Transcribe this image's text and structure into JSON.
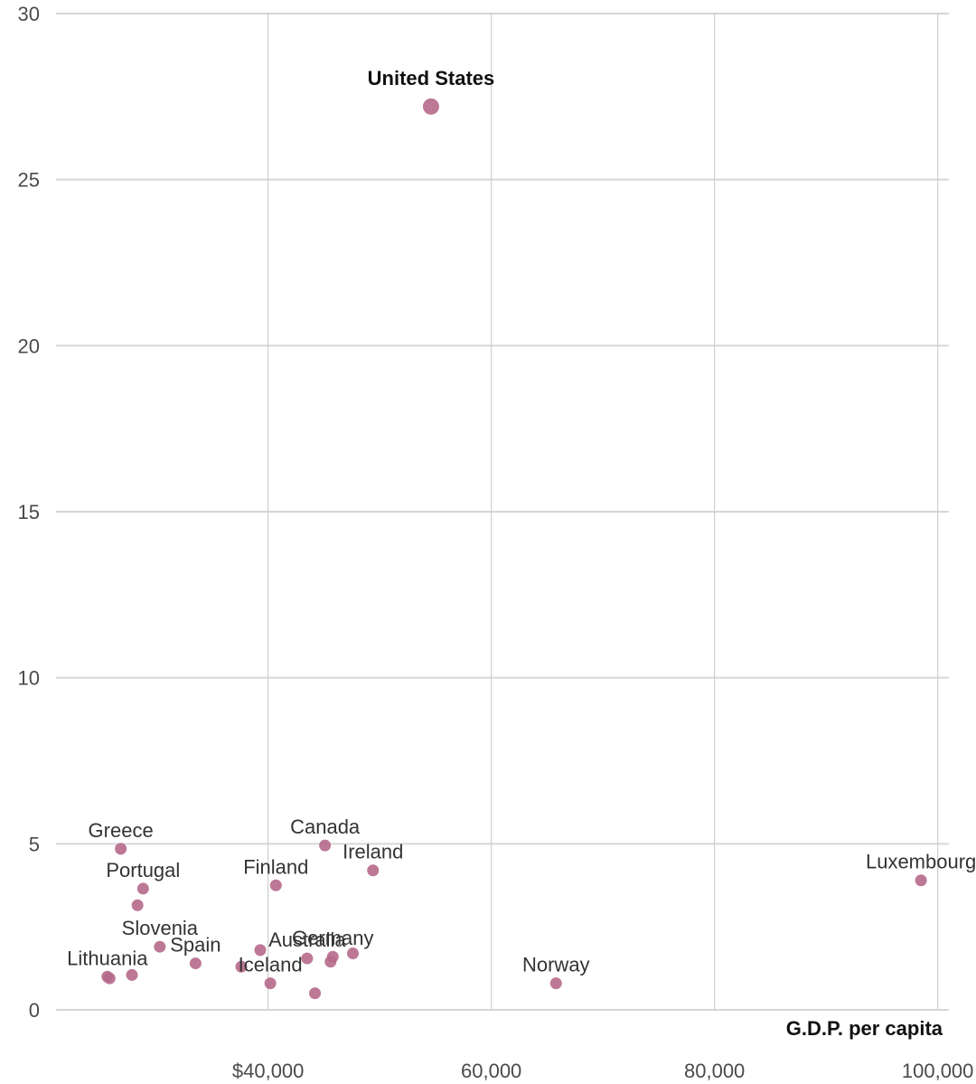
{
  "chart_data": {
    "type": "scatter",
    "xlabel": "G.D.P. per capita",
    "ylabel": "",
    "xlim": [
      21000,
      101000
    ],
    "ylim": [
      0,
      30
    ],
    "x_ticks": [
      {
        "value": 40000,
        "label": "$40,000"
      },
      {
        "value": 60000,
        "label": "60,000"
      },
      {
        "value": 80000,
        "label": "80,000"
      },
      {
        "value": 100000,
        "label": "100,000"
      }
    ],
    "y_ticks": [
      {
        "value": 0,
        "label": "0"
      },
      {
        "value": 5,
        "label": "5"
      },
      {
        "value": 10,
        "label": "10"
      },
      {
        "value": 15,
        "label": "15"
      },
      {
        "value": 20,
        "label": "20"
      },
      {
        "value": 25,
        "label": "25"
      },
      {
        "value": 30,
        "label": "30"
      }
    ],
    "grid": true,
    "point_color": "#b5698a",
    "points": [
      {
        "label": "United States",
        "x": 54600,
        "y": 27.2,
        "highlight": true
      },
      {
        "label": "Luxembourg",
        "x": 98500,
        "y": 3.9
      },
      {
        "label": "Norway",
        "x": 65800,
        "y": 0.8
      },
      {
        "label": "Canada",
        "x": 45100,
        "y": 4.95
      },
      {
        "label": "Ireland",
        "x": 49400,
        "y": 4.2
      },
      {
        "label": "Finland",
        "x": 40700,
        "y": 3.75
      },
      {
        "label": "Greece",
        "x": 26800,
        "y": 4.85
      },
      {
        "label": "Portugal",
        "x": 28800,
        "y": 3.65
      },
      {
        "label": "",
        "x": 28300,
        "y": 3.15
      },
      {
        "label": "Slovenia",
        "x": 30300,
        "y": 1.9
      },
      {
        "label": "Spain",
        "x": 33500,
        "y": 1.4
      },
      {
        "label": "Lithuania",
        "x": 25600,
        "y": 1.0
      },
      {
        "label": "",
        "x": 25800,
        "y": 0.95
      },
      {
        "label": "",
        "x": 27800,
        "y": 1.05
      },
      {
        "label": "",
        "x": 37600,
        "y": 1.3
      },
      {
        "label": "",
        "x": 39300,
        "y": 1.8
      },
      {
        "label": "Iceland",
        "x": 40200,
        "y": 0.8
      },
      {
        "label": "",
        "x": 44200,
        "y": 0.5
      },
      {
        "label": "Australia",
        "x": 43500,
        "y": 1.55
      },
      {
        "label": "Germany",
        "x": 45800,
        "y": 1.6
      },
      {
        "label": "",
        "x": 45600,
        "y": 1.45
      },
      {
        "label": "",
        "x": 47600,
        "y": 1.7
      }
    ]
  }
}
